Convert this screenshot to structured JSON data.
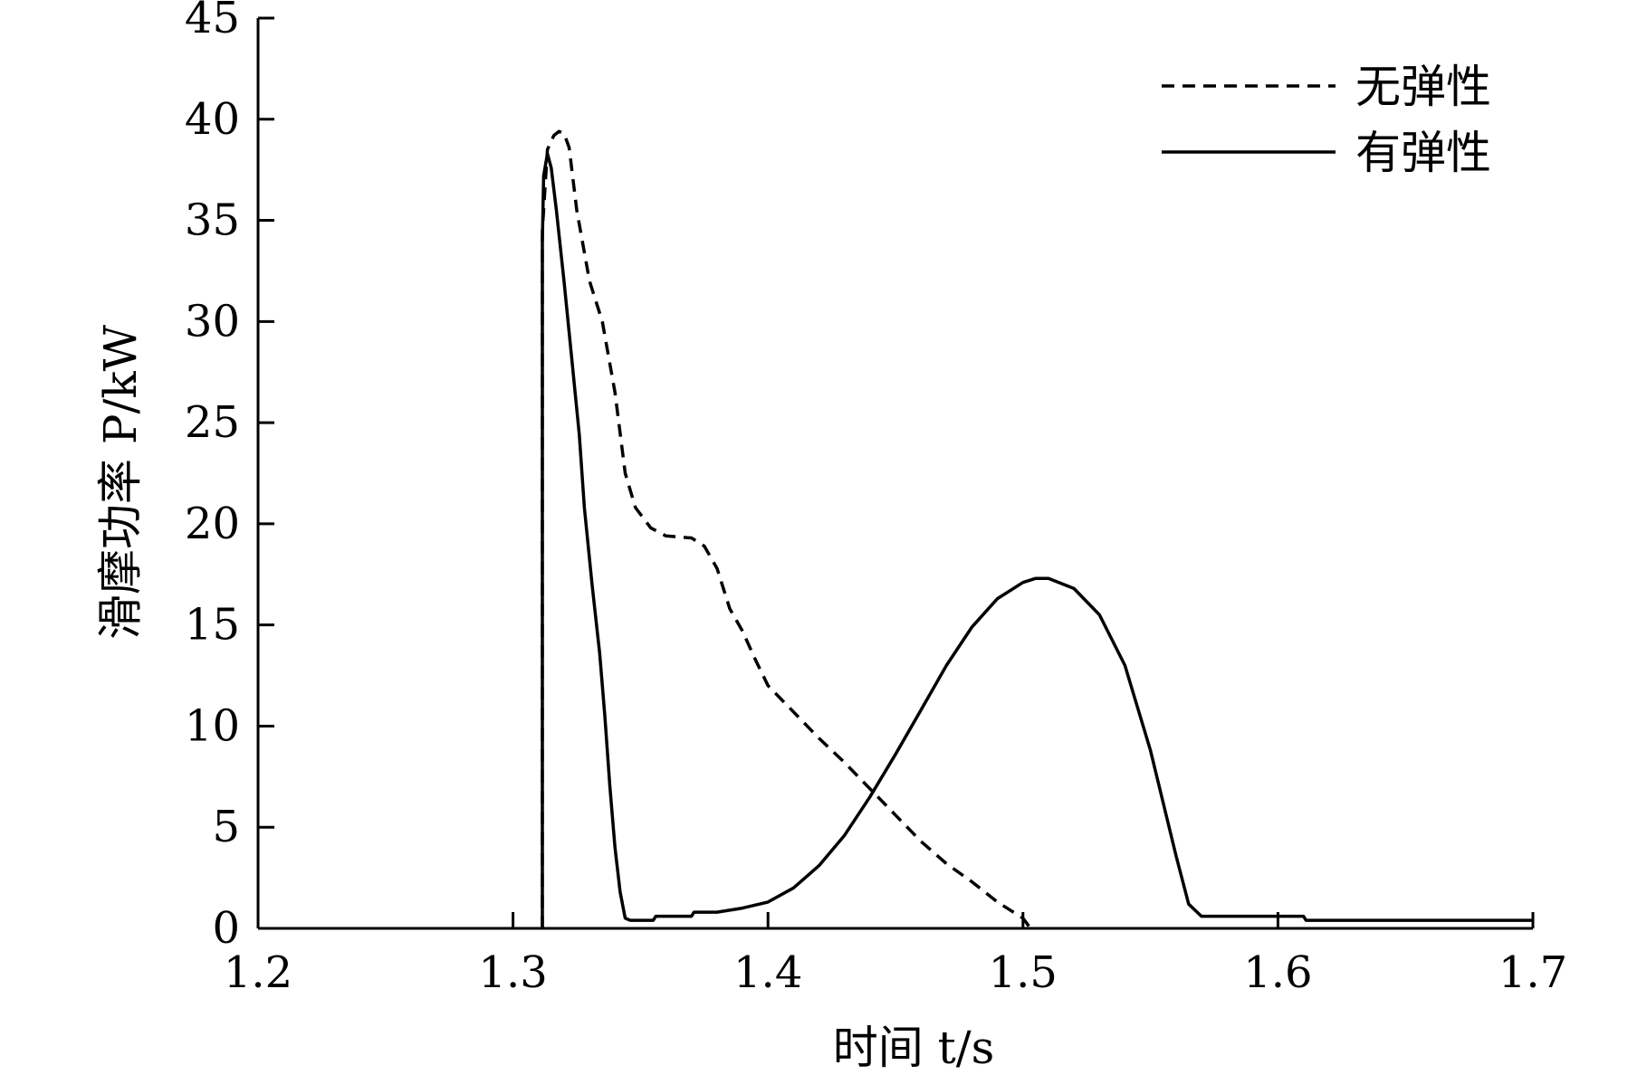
{
  "chart_data": {
    "type": "line",
    "title": "",
    "xlabel": "时间 t/s",
    "ylabel": "滑摩功率 P/kW",
    "xlim": [
      1.2,
      1.7
    ],
    "ylim": [
      0,
      45
    ],
    "xticks": [
      1.2,
      1.3,
      1.4,
      1.5,
      1.6,
      1.7
    ],
    "xtick_labels": [
      "1.2",
      "1.3",
      "1.4",
      "1.5",
      "1.6",
      "1.7"
    ],
    "yticks": [
      0,
      5,
      10,
      15,
      20,
      25,
      30,
      35,
      40,
      45
    ],
    "ytick_labels": [
      "0",
      "5",
      "10",
      "15",
      "20",
      "25",
      "30",
      "35",
      "40",
      "45"
    ],
    "grid": false,
    "legend_position": "top-right",
    "series": [
      {
        "name": "无弹性",
        "style": "dashed",
        "color": "#000000",
        "points": [
          [
            1.3115,
            0
          ],
          [
            1.3115,
            34.5
          ],
          [
            1.3135,
            38.5
          ],
          [
            1.316,
            39.2
          ],
          [
            1.318,
            39.4
          ],
          [
            1.32,
            39.3
          ],
          [
            1.322,
            38.6
          ],
          [
            1.325,
            35.5
          ],
          [
            1.33,
            32.0
          ],
          [
            1.335,
            30.0
          ],
          [
            1.34,
            26.5
          ],
          [
            1.344,
            22.5
          ],
          [
            1.348,
            20.8
          ],
          [
            1.354,
            19.8
          ],
          [
            1.36,
            19.4
          ],
          [
            1.37,
            19.3
          ],
          [
            1.375,
            18.9
          ],
          [
            1.38,
            17.8
          ],
          [
            1.385,
            15.8
          ],
          [
            1.39,
            14.7
          ],
          [
            1.395,
            13.3
          ],
          [
            1.4,
            12.0
          ],
          [
            1.41,
            10.7
          ],
          [
            1.42,
            9.4
          ],
          [
            1.43,
            8.2
          ],
          [
            1.44,
            6.9
          ],
          [
            1.45,
            5.6
          ],
          [
            1.46,
            4.3
          ],
          [
            1.47,
            3.2
          ],
          [
            1.48,
            2.3
          ],
          [
            1.49,
            1.3
          ],
          [
            1.5,
            0.5
          ],
          [
            1.503,
            0.0
          ]
        ]
      },
      {
        "name": "有弹性",
        "style": "solid",
        "color": "#000000",
        "points": [
          [
            1.3115,
            0
          ],
          [
            1.3115,
            34.0
          ],
          [
            1.312,
            37.2
          ],
          [
            1.3135,
            38.3
          ],
          [
            1.315,
            37.6
          ],
          [
            1.317,
            35.5
          ],
          [
            1.32,
            32.0
          ],
          [
            1.323,
            28.2
          ],
          [
            1.326,
            24.4
          ],
          [
            1.328,
            20.8
          ],
          [
            1.331,
            17.0
          ],
          [
            1.334,
            13.6
          ],
          [
            1.336,
            10.5
          ],
          [
            1.338,
            7.0
          ],
          [
            1.34,
            4.0
          ],
          [
            1.342,
            1.8
          ],
          [
            1.344,
            0.5
          ],
          [
            1.346,
            0.4
          ],
          [
            1.355,
            0.4
          ],
          [
            1.356,
            0.6
          ],
          [
            1.37,
            0.6
          ],
          [
            1.371,
            0.8
          ],
          [
            1.38,
            0.8
          ],
          [
            1.39,
            1.0
          ],
          [
            1.4,
            1.3
          ],
          [
            1.41,
            2.0
          ],
          [
            1.42,
            3.1
          ],
          [
            1.43,
            4.6
          ],
          [
            1.44,
            6.5
          ],
          [
            1.45,
            8.6
          ],
          [
            1.46,
            10.8
          ],
          [
            1.47,
            13.0
          ],
          [
            1.48,
            14.9
          ],
          [
            1.49,
            16.3
          ],
          [
            1.5,
            17.1
          ],
          [
            1.505,
            17.3
          ],
          [
            1.51,
            17.3
          ],
          [
            1.52,
            16.8
          ],
          [
            1.53,
            15.5
          ],
          [
            1.54,
            13.0
          ],
          [
            1.55,
            8.8
          ],
          [
            1.56,
            3.6
          ],
          [
            1.565,
            1.2
          ],
          [
            1.57,
            0.6
          ],
          [
            1.61,
            0.6
          ],
          [
            1.611,
            0.4
          ],
          [
            1.7,
            0.4
          ]
        ]
      }
    ]
  }
}
